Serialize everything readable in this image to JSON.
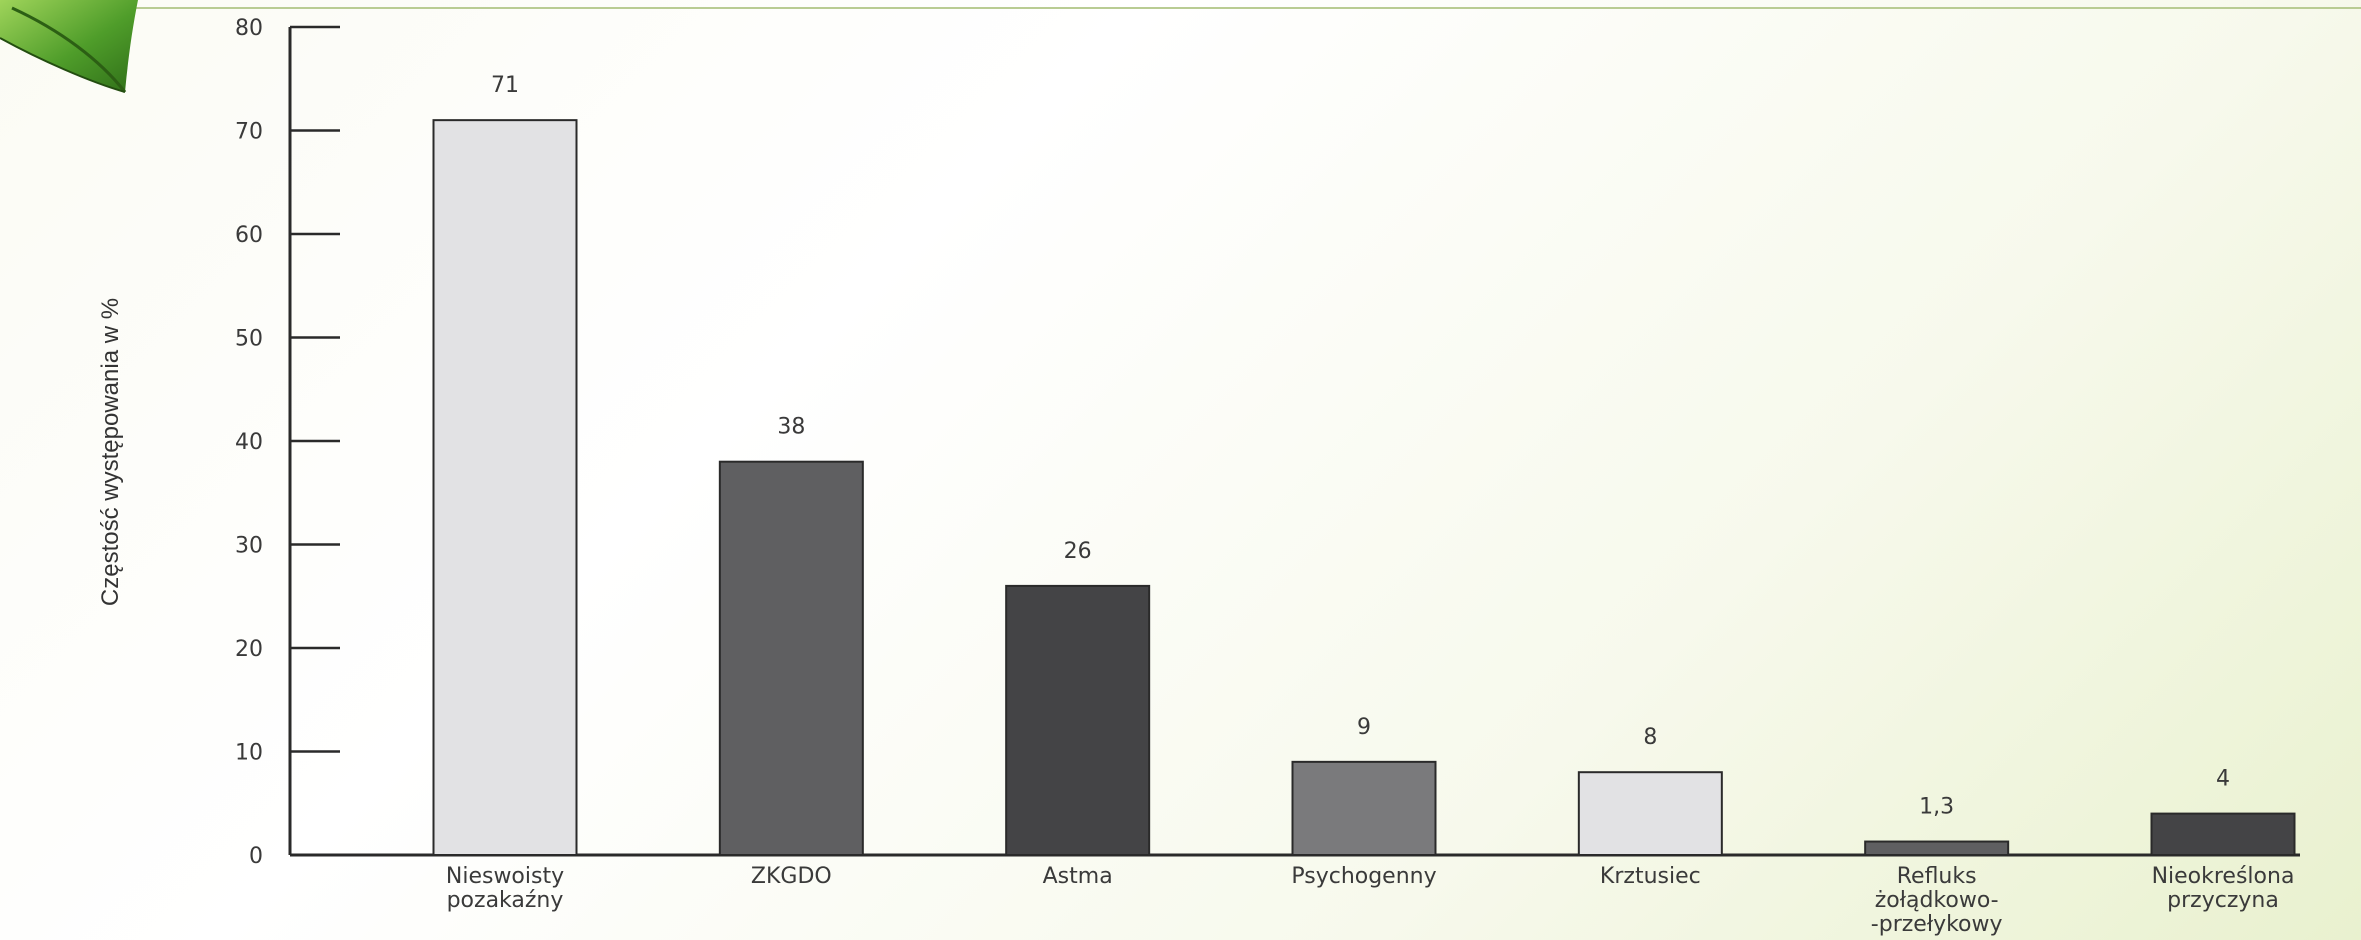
{
  "chart_data": {
    "type": "bar",
    "categories": [
      "Nieswoisty pozakaźny",
      "ZKGDO",
      "Astma",
      "Psychogenny",
      "Krztusiec",
      "Refluks żołądkowo--przełykowy",
      "Nieokreślona przyczyna"
    ],
    "category_lines": [
      [
        "Nieswoisty",
        "pozakaźny"
      ],
      [
        "ZKGDO"
      ],
      [
        "Astma"
      ],
      [
        "Psychogenny"
      ],
      [
        "Krztusiec"
      ],
      [
        "Refluks",
        "żołądkowo-",
        "-przełykowy"
      ],
      [
        "Nieokreślona",
        "przyczyna"
      ]
    ],
    "values": [
      71,
      38,
      26,
      9,
      8,
      1.3,
      4
    ],
    "value_labels": [
      "71",
      "38",
      "26",
      "9",
      "8",
      "1,3",
      "4"
    ],
    "bar_colors": [
      "#e2e2e4",
      "#5f5f61",
      "#444446",
      "#7a7a7c",
      "#e2e2e4",
      "#5f5f61",
      "#444446"
    ],
    "ylabel": "Częstość występowania w %",
    "xlabel": "",
    "title": "",
    "ylim": [
      0,
      80
    ],
    "yticks": [
      0,
      10,
      20,
      30,
      40,
      50,
      60,
      70,
      80
    ],
    "grid": false,
    "legend": "none"
  }
}
